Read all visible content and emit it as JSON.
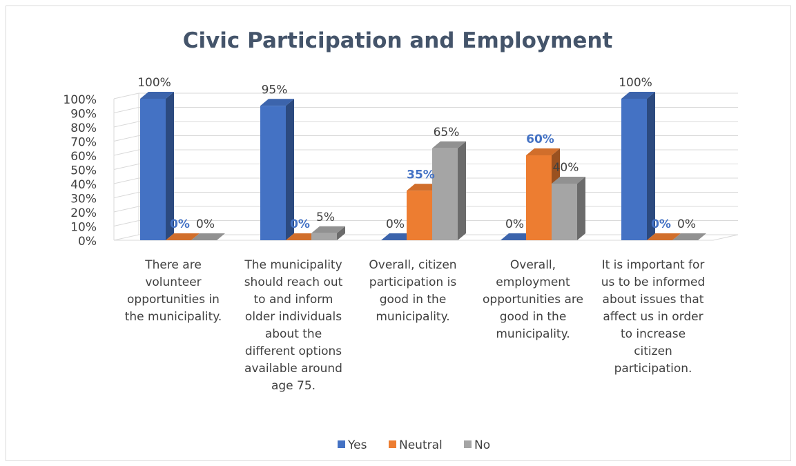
{
  "chart_data": {
    "type": "bar",
    "title": "Civic Participation and Employment",
    "categories": [
      [
        "There are",
        "volunteer",
        "opportunities in",
        "the municipality."
      ],
      [
        "The municipality",
        "should reach out",
        "to and inform",
        "older individuals",
        "about the",
        "different options",
        "available around",
        "age 75."
      ],
      [
        "Overall, citizen",
        "participation is",
        "good in the",
        "municipality."
      ],
      [
        "Overall,",
        "employment",
        "opportunities are",
        "good in the",
        "municipality."
      ],
      [
        "It is important for",
        "us to be informed",
        "about issues that",
        "affect us in order",
        "to increase",
        "citizen",
        "participation."
      ]
    ],
    "series": [
      {
        "name": "Yes",
        "values": [
          100,
          95,
          0,
          0,
          100
        ],
        "color": "#4472c4"
      },
      {
        "name": "Neutral",
        "values": [
          0,
          0,
          35,
          60,
          0
        ],
        "color": "#ed7d31"
      },
      {
        "name": "No",
        "values": [
          0,
          5,
          65,
          40,
          0
        ],
        "color": "#a5a5a5"
      }
    ],
    "data_labels": [
      [
        "100%",
        "95%",
        "0%",
        "0%",
        "100%"
      ],
      [
        "0%",
        "0%",
        "35%",
        "60%",
        "0%"
      ],
      [
        "0%",
        "5%",
        "65%",
        "40%",
        "0%"
      ]
    ],
    "y_ticks": [
      "0%",
      "10%",
      "20%",
      "30%",
      "40%",
      "50%",
      "60%",
      "70%",
      "80%",
      "90%",
      "100%"
    ],
    "ylim": [
      0,
      100
    ],
    "grid": true,
    "legend": "bottom"
  }
}
